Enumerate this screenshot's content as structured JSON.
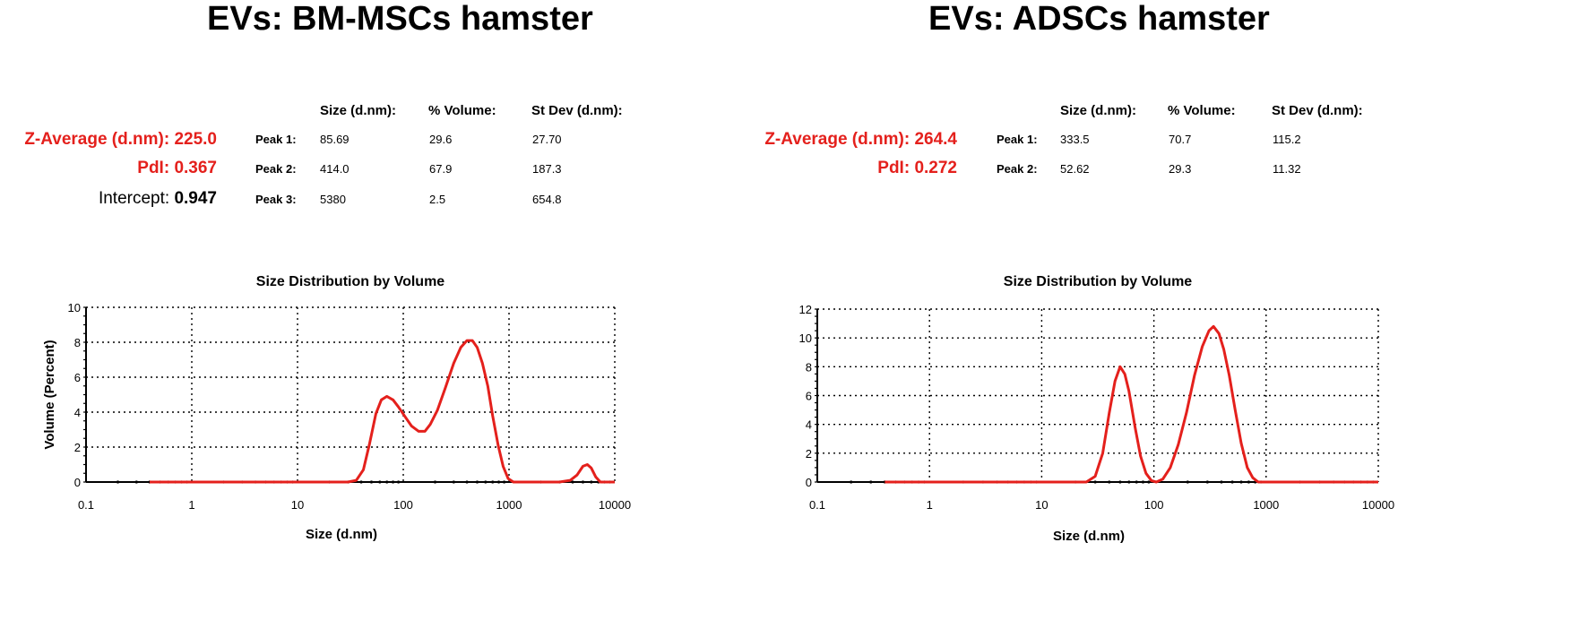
{
  "chart_data": [
    {
      "type": "line",
      "panel_title": "EVs: BM-MSCs hamster",
      "title": "Size Distribution by Volume",
      "xlabel": "Size (d.nm)",
      "ylabel": "Volume (Percent)",
      "xscale": "log",
      "xlim": [
        0.1,
        10000
      ],
      "ylim": [
        0,
        10
      ],
      "xticks": [
        "0.1",
        "1",
        "10",
        "100",
        "1000",
        "10000"
      ],
      "yticks": [
        "0",
        "2",
        "4",
        "6",
        "8",
        "10"
      ],
      "grid": true,
      "line_color": "#e4201c",
      "series": [
        {
          "x": [
            0.4,
            30,
            36,
            42,
            48,
            55,
            62,
            70,
            80,
            90,
            105,
            120,
            140,
            160,
            180,
            210,
            250,
            300,
            350,
            400,
            450,
            500,
            560,
            630,
            700,
            790,
            880,
            980,
            1100,
            1300,
            2000,
            3000,
            3800,
            4400,
            5000,
            5500,
            6000,
            6600,
            7300,
            10000
          ],
          "y": [
            0,
            0,
            0.1,
            0.7,
            2.2,
            3.9,
            4.7,
            4.9,
            4.7,
            4.3,
            3.7,
            3.2,
            2.9,
            2.9,
            3.3,
            4.1,
            5.4,
            6.8,
            7.7,
            8.1,
            8.1,
            7.7,
            6.8,
            5.5,
            3.8,
            2.1,
            0.9,
            0.2,
            0,
            0,
            0,
            0,
            0.1,
            0.4,
            0.9,
            1.0,
            0.8,
            0.3,
            0,
            0
          ]
        }
      ]
    },
    {
      "type": "line",
      "panel_title": "EVs: ADSCs hamster",
      "title": "Size Distribution by Volume",
      "xlabel": "Size (d.nm)",
      "ylabel": "Volume (Percent)",
      "xscale": "log",
      "xlim": [
        0.1,
        10000
      ],
      "ylim": [
        0,
        12
      ],
      "xticks": [
        "0.1",
        "1",
        "10",
        "100",
        "1000",
        "10000"
      ],
      "yticks": [
        "0",
        "2",
        "4",
        "6",
        "8",
        "10",
        "12"
      ],
      "grid": true,
      "line_color": "#e4201c",
      "series": [
        {
          "x": [
            0.4,
            25,
            30,
            35,
            40,
            45,
            50,
            55,
            60,
            68,
            76,
            85,
            95,
            105,
            120,
            140,
            165,
            195,
            230,
            270,
            310,
            340,
            380,
            420,
            470,
            530,
            600,
            680,
            760,
            850,
            1000,
            10000
          ],
          "y": [
            0,
            0,
            0.4,
            2.0,
            4.8,
            7.0,
            8.0,
            7.5,
            6.3,
            3.8,
            1.8,
            0.6,
            0.1,
            0,
            0.2,
            1.0,
            2.6,
            4.8,
            7.4,
            9.4,
            10.5,
            10.8,
            10.3,
            9.2,
            7.4,
            5.0,
            2.7,
            1.0,
            0.3,
            0,
            0,
            0
          ]
        }
      ]
    }
  ],
  "left": {
    "title": "EVs: BM-MSCs hamster",
    "headers": [
      "Size (d.nm):",
      "% Volume:",
      "St Dev (d.nm):"
    ],
    "zavg": "Z-Average (d.nm): 225.0",
    "pdi": "PdI: 0.367",
    "intercept_label": "Intercept: ",
    "intercept_value": "0.947",
    "peaks": [
      {
        "label": "Peak 1:",
        "size": "85.69",
        "volume": "29.6",
        "stdev": "27.70"
      },
      {
        "label": "Peak 2:",
        "size": "414.0",
        "volume": "67.9",
        "stdev": "187.3"
      },
      {
        "label": "Peak 3:",
        "size": "5380",
        "volume": "2.5",
        "stdev": "654.8"
      }
    ]
  },
  "right": {
    "title": "EVs: ADSCs hamster",
    "headers": [
      "Size (d.nm):",
      "% Volume:",
      "St Dev (d.nm):"
    ],
    "zavg": "Z-Average (d.nm): 264.4",
    "pdi": "PdI: 0.272",
    "peaks": [
      {
        "label": "Peak 1:",
        "size": "333.5",
        "volume": "70.7",
        "stdev": "115.2"
      },
      {
        "label": "Peak 2:",
        "size": "52.62",
        "volume": "29.3",
        "stdev": "11.32"
      }
    ]
  }
}
